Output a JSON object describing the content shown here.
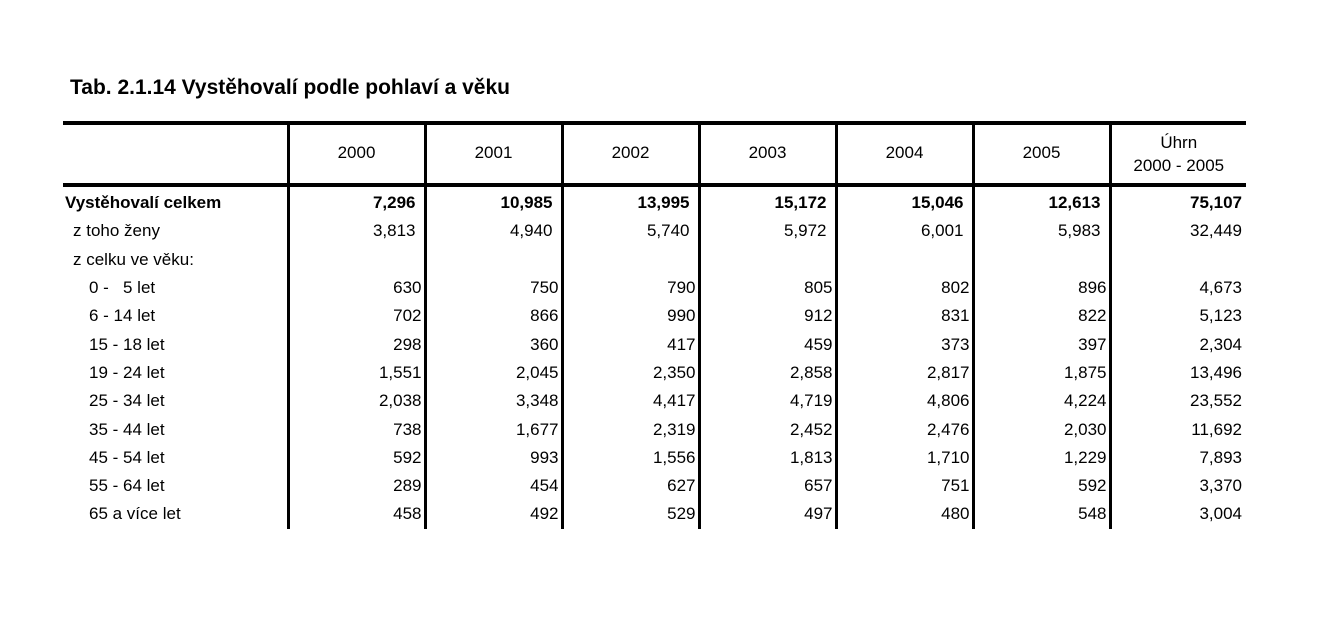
{
  "title": "Tab. 2.1.14 Vystěhovalí podle pohlaví a věku",
  "header": {
    "years": [
      "2000",
      "2001",
      "2002",
      "2003",
      "2004",
      "2005"
    ],
    "total_line1": "Úhrn",
    "total_line2": "2000 - 2005"
  },
  "rows": [
    {
      "label": "Vystěhovalí celkem",
      "values": [
        "7,296",
        "10,985",
        "13,995",
        "15,172",
        "15,046",
        "12,613"
      ],
      "total": "75,107"
    },
    {
      "label": "z toho ženy",
      "values": [
        "3,813",
        "4,940",
        "5,740",
        "5,972",
        "6,001",
        "5,983"
      ],
      "total": "32,449"
    },
    {
      "label": "z celku ve věku:",
      "values": [
        "",
        "",
        "",
        "",
        "",
        ""
      ],
      "total": ""
    },
    {
      "label": "0 -   5 let",
      "values": [
        "630",
        "750",
        "790",
        "805",
        "802",
        "896"
      ],
      "total": "4,673"
    },
    {
      "label": "6 - 14 let",
      "values": [
        "702",
        "866",
        "990",
        "912",
        "831",
        "822"
      ],
      "total": "5,123"
    },
    {
      "label": "15 - 18 let",
      "values": [
        "298",
        "360",
        "417",
        "459",
        "373",
        "397"
      ],
      "total": "2,304"
    },
    {
      "label": "19 - 24 let",
      "values": [
        "1,551",
        "2,045",
        "2,350",
        "2,858",
        "2,817",
        "1,875"
      ],
      "total": "13,496"
    },
    {
      "label": "25 - 34 let",
      "values": [
        "2,038",
        "3,348",
        "4,417",
        "4,719",
        "4,806",
        "4,224"
      ],
      "total": "23,552"
    },
    {
      "label": "35 - 44 let",
      "values": [
        "738",
        "1,677",
        "2,319",
        "2,452",
        "2,476",
        "2,030"
      ],
      "total": "11,692"
    },
    {
      "label": "45 - 54 let",
      "values": [
        "592",
        "993",
        "1,556",
        "1,813",
        "1,710",
        "1,229"
      ],
      "total": "7,893"
    },
    {
      "label": "55 - 64 let",
      "values": [
        "289",
        "454",
        "627",
        "657",
        "751",
        "592"
      ],
      "total": "3,370"
    },
    {
      "label": "65 a více let",
      "values": [
        "458",
        "492",
        "529",
        "497",
        "480",
        "548"
      ],
      "total": "3,004"
    }
  ]
}
